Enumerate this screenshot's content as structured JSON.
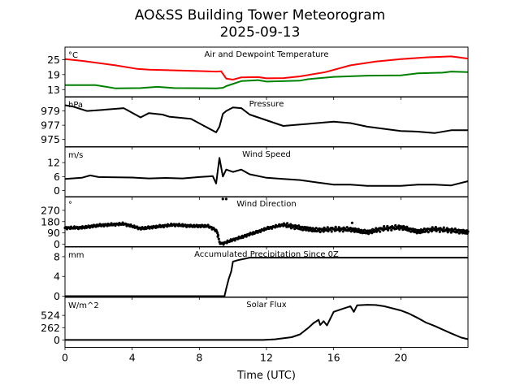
{
  "chart_data": {
    "type": "line",
    "title": "AO&SS Building Tower Meteorogram",
    "subtitle": "2025-09-13",
    "xlabel": "Time (UTC)",
    "xlim": [
      0,
      24
    ],
    "xticks": [
      0,
      4,
      8,
      12,
      16,
      20
    ],
    "xtick_labels": [
      "0",
      "4",
      "8",
      "12",
      "16",
      "20"
    ],
    "grid": false,
    "panels": [
      {
        "title": "Air and Dewpoint Temperature",
        "unit": "°C",
        "ylim": [
          10,
          30
        ],
        "yticks": [
          13,
          19,
          25
        ],
        "ytick_labels": [
          "13",
          "19",
          "25"
        ],
        "series": [
          {
            "name": "Air Temperature",
            "color": "#ff0000",
            "style": "line",
            "points": [
              [
                0,
                25.2
              ],
              [
                1,
                24.5
              ],
              [
                3,
                22.7
              ],
              [
                4.3,
                21.3
              ],
              [
                5,
                21
              ],
              [
                7,
                20.6
              ],
              [
                9,
                20.2
              ],
              [
                9.3,
                20.3
              ],
              [
                9.6,
                17.4
              ],
              [
                10,
                17
              ],
              [
                10.5,
                17.9
              ],
              [
                11.5,
                18
              ],
              [
                12,
                17.5
              ],
              [
                13,
                17.6
              ],
              [
                14,
                18.3
              ],
              [
                15.5,
                20
              ],
              [
                17,
                22.7
              ],
              [
                18.5,
                24.2
              ],
              [
                20,
                25.2
              ],
              [
                21.5,
                25.9
              ],
              [
                23,
                26.3
              ],
              [
                24,
                25.4
              ]
            ]
          },
          {
            "name": "Dewpoint",
            "color": "#008000",
            "style": "line",
            "points": [
              [
                0,
                14.8
              ],
              [
                1.8,
                14.8
              ],
              [
                3,
                13.5
              ],
              [
                4.5,
                13.6
              ],
              [
                5.5,
                14.1
              ],
              [
                6.5,
                13.6
              ],
              [
                9,
                13.5
              ],
              [
                9.4,
                13.7
              ],
              [
                9.6,
                14.4
              ],
              [
                10.5,
                16.4
              ],
              [
                11,
                16.6
              ],
              [
                11.5,
                16.8
              ],
              [
                12,
                16.2
              ],
              [
                14,
                16.6
              ],
              [
                14.5,
                17.2
              ],
              [
                16,
                18.1
              ],
              [
                18,
                18.6
              ],
              [
                20,
                18.7
              ],
              [
                21,
                19.5
              ],
              [
                22.5,
                19.8
              ],
              [
                23,
                20.2
              ],
              [
                24,
                20
              ]
            ]
          }
        ]
      },
      {
        "title": "Pressure",
        "unit": "hPa",
        "ylim": [
          974,
          981
        ],
        "yticks": [
          975,
          977,
          979
        ],
        "ytick_labels": [
          "975",
          "977",
          "979"
        ],
        "series": [
          {
            "name": "Pressure",
            "color": "#000000",
            "style": "line",
            "points": [
              [
                0,
                979.8
              ],
              [
                0.5,
                979.6
              ],
              [
                1.3,
                979
              ],
              [
                2.5,
                979.2
              ],
              [
                3.5,
                979.4
              ],
              [
                4.5,
                978.1
              ],
              [
                5,
                978.7
              ],
              [
                5.8,
                978.5
              ],
              [
                6.2,
                978.2
              ],
              [
                7.5,
                977.9
              ],
              [
                9,
                976
              ],
              [
                9.2,
                976.8
              ],
              [
                9.4,
                978.6
              ],
              [
                9.6,
                979
              ],
              [
                10,
                979.5
              ],
              [
                10.5,
                979.4
              ],
              [
                11,
                978.5
              ],
              [
                12,
                977.7
              ],
              [
                13,
                976.9
              ],
              [
                14,
                977.1
              ],
              [
                15,
                977.3
              ],
              [
                16,
                977.5
              ],
              [
                17,
                977.3
              ],
              [
                18,
                976.8
              ],
              [
                20,
                976.2
              ],
              [
                21,
                976.1
              ],
              [
                22,
                975.9
              ],
              [
                23,
                976.3
              ],
              [
                24,
                976.3
              ]
            ]
          }
        ]
      },
      {
        "title": "Wind Speed",
        "unit": "m/s",
        "ylim": [
          -2.8,
          18.7
        ],
        "yticks": [
          0,
          6,
          12
        ],
        "ytick_labels": [
          "0",
          "6",
          "12"
        ],
        "series": [
          {
            "name": "Wind Speed",
            "color": "#000000",
            "style": "line",
            "points": [
              [
                0,
                5
              ],
              [
                1,
                5.5
              ],
              [
                1.5,
                6.5
              ],
              [
                2,
                5.8
              ],
              [
                4,
                5.6
              ],
              [
                5,
                5.2
              ],
              [
                6,
                5.4
              ],
              [
                7,
                5.2
              ],
              [
                8,
                5.8
              ],
              [
                8.8,
                6.2
              ],
              [
                9,
                3
              ],
              [
                9.2,
                14
              ],
              [
                9.4,
                6
              ],
              [
                9.6,
                9
              ],
              [
                10,
                8
              ],
              [
                10.5,
                9
              ],
              [
                11,
                7
              ],
              [
                12,
                5.5
              ],
              [
                13,
                5
              ],
              [
                14,
                4.5
              ],
              [
                15,
                3.5
              ],
              [
                16,
                2.5
              ],
              [
                17,
                2.5
              ],
              [
                18,
                2
              ],
              [
                20,
                2
              ],
              [
                21,
                2.5
              ],
              [
                22,
                2.5
              ],
              [
                23,
                2.2
              ],
              [
                24,
                4
              ]
            ]
          }
        ]
      },
      {
        "title": "Wind Direction",
        "unit": "°",
        "ylim": [
          -19,
          379
        ],
        "yticks": [
          0,
          90,
          180,
          270
        ],
        "ytick_labels": [
          "0",
          "90",
          "180",
          "270"
        ],
        "series": [
          {
            "name": "Wind Direction",
            "color": "#000000",
            "style": "scatter",
            "points": [
              [
                0,
                130
              ],
              [
                1,
                132
              ],
              [
                2,
                150
              ],
              [
                3.5,
                162
              ],
              [
                4.5,
                125
              ],
              [
                5.5,
                140
              ],
              [
                6.5,
                155
              ],
              [
                7.5,
                145
              ],
              [
                8.5,
                145
              ],
              [
                8.9,
                120
              ],
              [
                9.1,
                90
              ],
              [
                9.2,
                10
              ],
              [
                9.4,
                5
              ],
              [
                9.6,
                15
              ],
              [
                10,
                35
              ],
              [
                10.6,
                60
              ],
              [
                11,
                80
              ],
              [
                11.5,
                100
              ],
              [
                12,
                125
              ],
              [
                13,
                155
              ],
              [
                14,
                130
              ],
              [
                15,
                112
              ],
              [
                16,
                120
              ],
              [
                17,
                118
              ],
              [
                18,
                95
              ],
              [
                18.5,
                110
              ],
              [
                19,
                125
              ],
              [
                20,
                135
              ],
              [
                21,
                100
              ],
              [
                22,
                120
              ],
              [
                23,
                110
              ],
              [
                24,
                95
              ]
            ],
            "outliers": [
              [
                9.4,
                360
              ],
              [
                9.6,
                360
              ],
              [
                17.1,
                170
              ],
              [
                9.1,
                60
              ]
            ]
          }
        ]
      },
      {
        "title": "Accumulated Precipitation Since 0Z",
        "unit": "mm",
        "ylim": [
          -0.16,
          9.96
        ],
        "yticks": [
          0,
          4,
          8
        ],
        "ytick_labels": [
          "0",
          "4",
          "8"
        ],
        "series": [
          {
            "name": "Accumulated Precipitation",
            "color": "#000000",
            "style": "line",
            "points": [
              [
                0,
                0
              ],
              [
                9.5,
                0
              ],
              [
                9.6,
                1.5
              ],
              [
                9.75,
                3.5
              ],
              [
                9.9,
                5
              ],
              [
                10,
                7
              ],
              [
                10.3,
                7.3
              ],
              [
                10.6,
                7.5
              ],
              [
                11,
                7.8
              ],
              [
                24,
                7.8
              ]
            ]
          }
        ]
      },
      {
        "title": "Solar Flux",
        "unit": "W/m^2",
        "ylim": [
          -157,
          908
        ],
        "yticks": [
          0,
          262,
          524
        ],
        "ytick_labels": [
          "0",
          "262",
          "524"
        ],
        "series": [
          {
            "name": "Solar Flux",
            "color": "#000000",
            "style": "line",
            "points": [
              [
                0,
                0
              ],
              [
                11.8,
                0
              ],
              [
                12.5,
                15
              ],
              [
                13.5,
                60
              ],
              [
                14,
                120
              ],
              [
                14.5,
                262
              ],
              [
                14.8,
                360
              ],
              [
                15.1,
                430
              ],
              [
                15.2,
                320
              ],
              [
                15.4,
                400
              ],
              [
                15.6,
                310
              ],
              [
                16,
                600
              ],
              [
                16.5,
                660
              ],
              [
                17,
                720
              ],
              [
                17.2,
                600
              ],
              [
                17.4,
                740
              ],
              [
                18,
                750
              ],
              [
                18.5,
                745
              ],
              [
                19,
                720
              ],
              [
                20,
                630
              ],
              [
                20.5,
                560
              ],
              [
                21,
                470
              ],
              [
                21.5,
                372
              ],
              [
                22,
                300
              ],
              [
                23,
                140
              ],
              [
                23.6,
                50
              ],
              [
                24,
                17
              ]
            ]
          }
        ]
      }
    ]
  }
}
